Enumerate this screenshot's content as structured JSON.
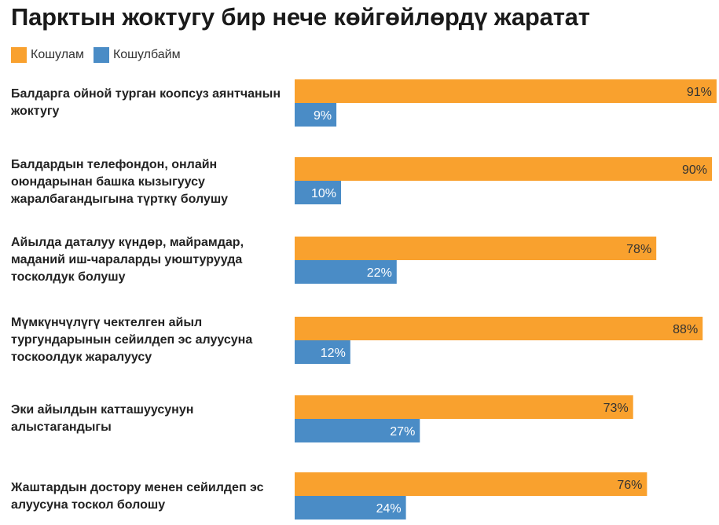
{
  "colors": {
    "agree": "#F9A12E",
    "disagree": "#4A8CC6"
  },
  "legend": {
    "agree": "Кошулам",
    "disagree": "Кошулбайм"
  },
  "chart_data": {
    "type": "bar",
    "orientation": "horizontal",
    "title": "Парктын жоктугу бир нече көйгөйлөрдү жаратат",
    "categories": [
      "Балдарга ойной турган коопсуз аянтчанын жоктугу",
      "Балдардын телефондон, онлайн оюндарынан башка кызыгуусу жаралбагандыгына түрткү болушу",
      "Айылда даталуу күндөр, майрамдар, маданий иш-чараларды уюштурууда тосколдук болушу",
      "Мүмкүнчүлүгү чектелген айыл тургундарынын сейилдеп эс алуусуна тоскоолдук жаралуусу",
      "Эки айылдын катташуусунун алыстагандыгы",
      "Жаштардын достору менен сейилдеп эс алуусуна тоскол болошу"
    ],
    "series": [
      {
        "name": "Кошулам",
        "values": [
          91,
          90,
          78,
          88,
          73,
          76
        ],
        "labels": [
          "91%",
          "90%",
          "78%",
          "88%",
          "73%",
          "76%"
        ]
      },
      {
        "name": "Кошулбайм",
        "values": [
          9,
          10,
          22,
          12,
          27,
          24
        ],
        "labels": [
          "9%",
          "10%",
          "22%",
          "12%",
          "27%",
          "24%"
        ]
      }
    ],
    "xlim": [
      0,
      100
    ],
    "grid": false,
    "legend_position": "top-left"
  }
}
